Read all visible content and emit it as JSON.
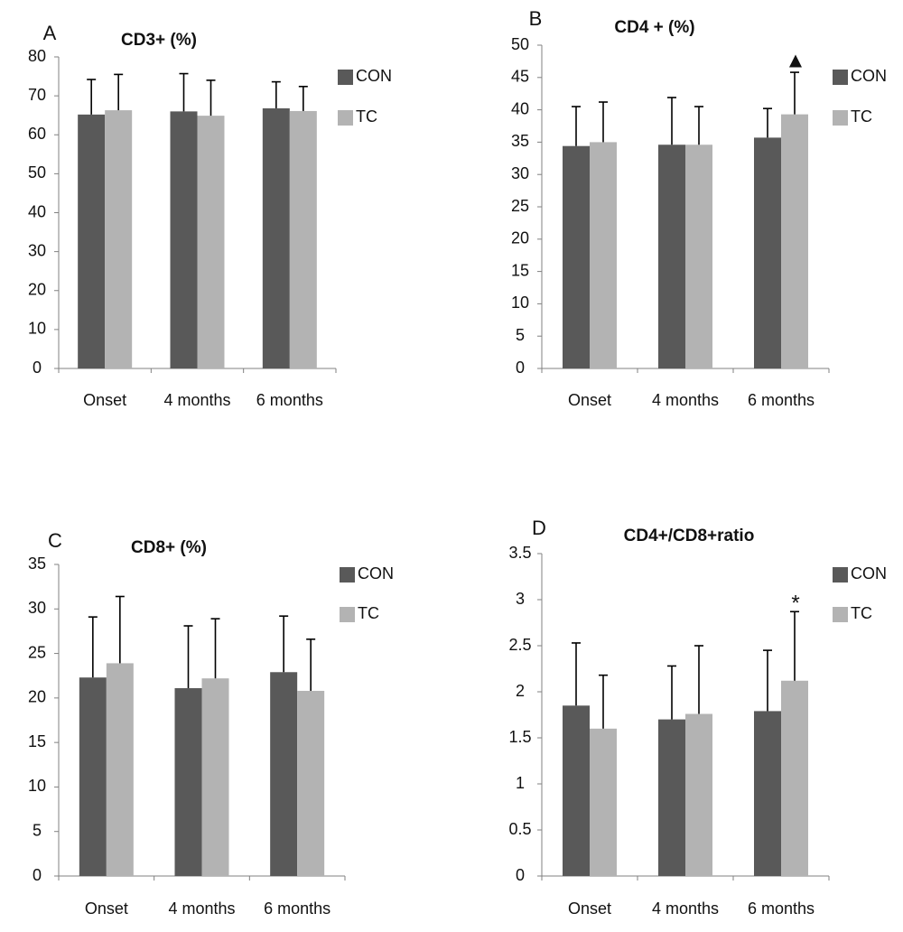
{
  "colors": {
    "CON": "#595959",
    "TC": "#b3b3b3",
    "axis": "#808080",
    "error": "#000000"
  },
  "chart_data": [
    {
      "panel": "A",
      "type": "bar",
      "title": "CD3+ (%)",
      "categories": [
        "Onset",
        "4 months",
        "6 months"
      ],
      "ylim": [
        0,
        80
      ],
      "yticks": [
        0,
        10,
        20,
        30,
        40,
        50,
        60,
        70,
        80
      ],
      "legend": "right",
      "series": [
        {
          "name": "CON",
          "values": [
            65.2,
            66.0,
            66.8
          ],
          "errors": [
            9.0,
            9.7,
            6.8
          ]
        },
        {
          "name": "TC",
          "values": [
            66.3,
            64.9,
            66.1
          ],
          "errors": [
            9.2,
            9.1,
            6.3
          ]
        }
      ],
      "annotations": []
    },
    {
      "panel": "B",
      "type": "bar",
      "title": "CD4 + (%)",
      "categories": [
        "Onset",
        "4 months",
        "6 months"
      ],
      "ylim": [
        0,
        50
      ],
      "yticks": [
        0,
        5,
        10,
        15,
        20,
        25,
        30,
        35,
        40,
        45,
        50
      ],
      "legend": "right",
      "series": [
        {
          "name": "CON",
          "values": [
            34.4,
            34.6,
            35.7
          ],
          "errors": [
            6.1,
            7.3,
            4.5
          ]
        },
        {
          "name": "TC",
          "values": [
            35.0,
            34.6,
            39.3
          ],
          "errors": [
            6.2,
            5.9,
            6.5
          ]
        }
      ],
      "annotations": [
        {
          "text": "▲",
          "category": "6 months",
          "series": "TC"
        }
      ]
    },
    {
      "panel": "C",
      "type": "bar",
      "title": "CD8+ (%)",
      "categories": [
        "Onset",
        "4 months",
        "6 months"
      ],
      "ylim": [
        0,
        35
      ],
      "yticks": [
        0,
        5,
        10,
        15,
        20,
        25,
        30,
        35
      ],
      "legend": "right",
      "series": [
        {
          "name": "CON",
          "values": [
            22.3,
            21.1,
            22.9
          ],
          "errors": [
            6.8,
            7.0,
            6.3
          ]
        },
        {
          "name": "TC",
          "values": [
            23.9,
            22.2,
            20.8
          ],
          "errors": [
            7.5,
            6.7,
            5.8
          ]
        }
      ],
      "annotations": []
    },
    {
      "panel": "D",
      "type": "bar",
      "title": "CD4+/CD8+ratio",
      "categories": [
        "Onset",
        "4 months",
        "6 months"
      ],
      "ylim": [
        0,
        3.5
      ],
      "yticks": [
        0,
        0.5,
        1,
        1.5,
        2,
        2.5,
        3,
        3.5
      ],
      "yticklabels": [
        "0",
        "0.5",
        "1",
        "1.5",
        "2",
        "2.5",
        "3",
        "3.5"
      ],
      "legend": "right",
      "series": [
        {
          "name": "CON",
          "values": [
            1.85,
            1.7,
            1.79
          ],
          "errors": [
            0.68,
            0.58,
            0.66
          ]
        },
        {
          "name": "TC",
          "values": [
            1.6,
            1.76,
            2.12
          ],
          "errors": [
            0.58,
            0.74,
            0.75
          ]
        }
      ],
      "annotations": [
        {
          "text": "*",
          "category": "6 months",
          "series": "TC"
        }
      ]
    }
  ]
}
